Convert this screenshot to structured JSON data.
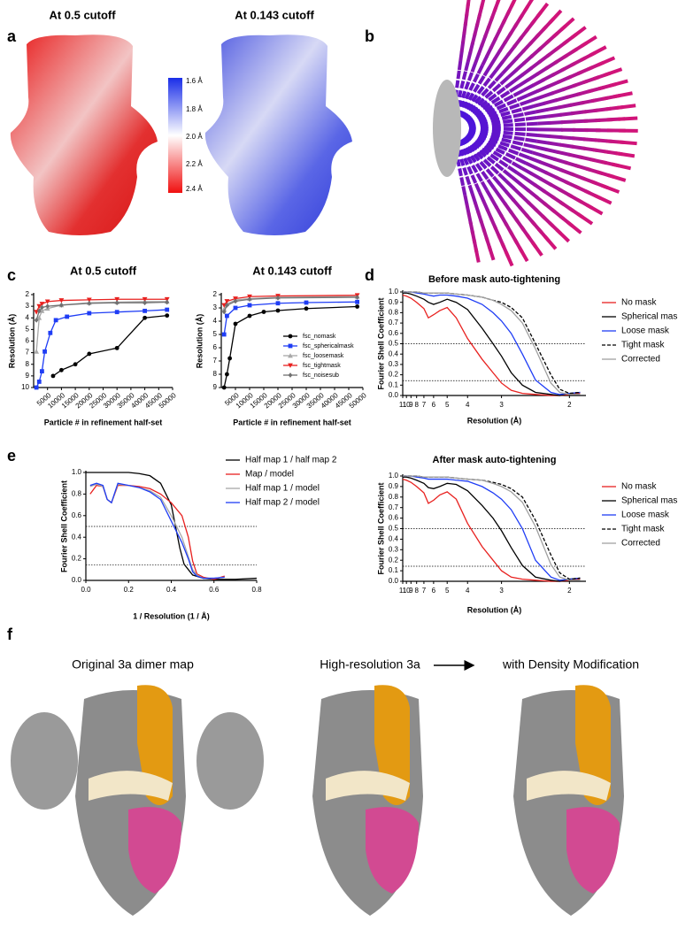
{
  "panel_labels": [
    "a",
    "b",
    "c",
    "d",
    "e",
    "f"
  ],
  "panel_a": {
    "titles": [
      "At 0.5 cutoff",
      "At 0.143 cutoff"
    ],
    "colorbar_labels": [
      "1.6 Å",
      "1.8 Å",
      "2.0 Å",
      "2.2 Å",
      "2.4 Å"
    ]
  },
  "panel_f": {
    "titles": [
      "Original 3a dimer map",
      "High-resolution 3a",
      "with Density Modification"
    ]
  },
  "chart_data": [
    {
      "type": "line",
      "title": "At 0.5 cutoff",
      "xlabel": "Particle # in refinement half-set",
      "ylabel": "Resolution (Å)",
      "xlim": [
        0,
        50000
      ],
      "xticks": [
        5000,
        10000,
        15000,
        20000,
        25000,
        30000,
        35000,
        40000,
        45000,
        50000
      ],
      "ylim": [
        10,
        2
      ],
      "yticks": [
        2,
        3,
        4,
        5,
        6,
        7,
        8,
        9,
        10
      ],
      "series": [
        {
          "color": "#000000",
          "marker": "circle",
          "x": [
            7000,
            10000,
            15000,
            20000,
            30000,
            40000,
            48000
          ],
          "values": [
            9,
            8.5,
            8,
            7.1,
            6.6,
            4,
            3.8
          ]
        },
        {
          "color": "#1f3df5",
          "marker": "square",
          "x": [
            1000,
            2000,
            3000,
            4000,
            6000,
            8000,
            12000,
            20000,
            30000,
            40000,
            48000
          ],
          "values": [
            10,
            9.5,
            8.6,
            6.9,
            5.3,
            4.2,
            3.9,
            3.6,
            3.5,
            3.4,
            3.3
          ]
        },
        {
          "color": "#a8a8a8",
          "marker": "triangle",
          "x": [
            1000,
            2000,
            3000,
            5000,
            10000,
            20000,
            30000,
            40000,
            48000
          ],
          "values": [
            6.9,
            4,
            3.4,
            3.2,
            2.9,
            2.7,
            2.65,
            2.6,
            2.6
          ]
        },
        {
          "color": "#e8211f",
          "marker": "down-triangle",
          "x": [
            1000,
            2000,
            3000,
            5000,
            10000,
            20000,
            30000,
            40000,
            48000
          ],
          "values": [
            3.5,
            3,
            2.8,
            2.6,
            2.5,
            2.45,
            2.4,
            2.4,
            2.4
          ]
        },
        {
          "color": "#707070",
          "marker": "diamond",
          "x": [
            1000,
            2000,
            3000,
            5000,
            10000,
            20000,
            30000,
            40000,
            48000
          ],
          "values": [
            4.2,
            3.4,
            3.1,
            3,
            2.9,
            2.75,
            2.7,
            2.7,
            2.65
          ]
        }
      ]
    },
    {
      "type": "line",
      "title": "At 0.143 cutoff",
      "xlabel": "Particle # in refinement half-set",
      "ylabel": "Resolution (Å)",
      "xlim": [
        0,
        50000
      ],
      "xticks": [
        5000,
        10000,
        15000,
        20000,
        25000,
        30000,
        35000,
        40000,
        45000,
        50000
      ],
      "ylim": [
        9,
        2
      ],
      "yticks": [
        2,
        3,
        4,
        5,
        6,
        7,
        8,
        9
      ],
      "legend": "lower right",
      "series": [
        {
          "name": "fsc_nomask",
          "color": "#000000",
          "marker": "circle",
          "x": [
            1000,
            2000,
            3000,
            5000,
            10000,
            15000,
            20000,
            30000,
            48000
          ],
          "values": [
            9,
            8,
            6.8,
            4.2,
            3.6,
            3.3,
            3.2,
            3.05,
            2.9
          ]
        },
        {
          "name": "fsc_sphericalmask",
          "color": "#1f3df5",
          "marker": "square",
          "x": [
            1000,
            2000,
            5000,
            10000,
            20000,
            30000,
            48000
          ],
          "values": [
            5,
            3.6,
            3,
            2.8,
            2.65,
            2.6,
            2.55
          ]
        },
        {
          "name": "fsc_loosemask",
          "color": "#a8a8a8",
          "marker": "triangle",
          "x": [
            1000,
            2000,
            5000,
            10000,
            20000,
            48000
          ],
          "values": [
            3.1,
            2.7,
            2.4,
            2.3,
            2.2,
            2.15
          ]
        },
        {
          "name": "fsc_tightmask",
          "color": "#e8211f",
          "marker": "down-triangle",
          "x": [
            1000,
            2000,
            5000,
            10000,
            20000,
            48000
          ],
          "values": [
            2.8,
            2.5,
            2.3,
            2.15,
            2.1,
            2.05
          ]
        },
        {
          "name": "fsc_noisesub",
          "color": "#707070",
          "marker": "diamond",
          "x": [
            1000,
            2000,
            5000,
            10000,
            20000,
            48000
          ],
          "values": [
            3.3,
            2.8,
            2.5,
            2.35,
            2.25,
            2.2
          ]
        }
      ]
    },
    {
      "type": "line",
      "title": "Before mask auto-tightening",
      "xlabel": "Resolution (Å)",
      "ylabel": "Fourier Shell Coefficient",
      "xscale": "reciprocal",
      "xlim": [
        11,
        1.85
      ],
      "xticks": [
        11,
        10,
        9,
        8,
        7,
        6,
        5,
        4,
        3,
        2
      ],
      "ylim": [
        0,
        1
      ],
      "yticks": [
        {
          "value": 0,
          "label": "0.0"
        },
        0.1,
        0.2,
        0.3,
        0.4,
        0.5,
        0.6,
        0.7,
        0.8,
        0.9,
        {
          "value": 1,
          "label": "1.0"
        }
      ],
      "reference_lines": [
        0.5,
        0.143
      ],
      "legend": "right",
      "x": [
        11,
        10,
        9,
        8,
        7,
        6.5,
        6,
        5.5,
        5,
        4.5,
        4,
        3.5,
        3.2,
        3,
        2.8,
        2.6,
        2.4,
        2.2,
        2.1,
        2,
        1.9
      ],
      "series": [
        {
          "name": "No mask",
          "color": "#e8211f",
          "values": [
            0.97,
            0.96,
            0.94,
            0.9,
            0.84,
            0.75,
            0.78,
            0.82,
            0.85,
            0.75,
            0.55,
            0.35,
            0.22,
            0.12,
            0.05,
            0.02,
            0.01,
            0,
            0,
            0.01,
            0.02
          ]
        },
        {
          "name": "Spherical mask",
          "color": "#000000",
          "values": [
            0.99,
            0.99,
            0.98,
            0.96,
            0.93,
            0.9,
            0.88,
            0.9,
            0.93,
            0.9,
            0.83,
            0.65,
            0.5,
            0.38,
            0.22,
            0.1,
            0.03,
            0.01,
            0,
            0.02,
            0.03
          ]
        },
        {
          "name": "Loose mask",
          "color": "#1f3df5",
          "values": [
            1,
            1,
            1,
            0.99,
            0.98,
            0.97,
            0.96,
            0.97,
            0.97,
            0.96,
            0.94,
            0.88,
            0.8,
            0.72,
            0.6,
            0.4,
            0.15,
            0.03,
            0.01,
            0.02,
            0.03
          ]
        },
        {
          "name": "Tight mask",
          "color": "#000000",
          "dash": true,
          "values": [
            1,
            1,
            1,
            1,
            0.99,
            0.99,
            0.99,
            0.99,
            0.99,
            0.98,
            0.97,
            0.95,
            0.92,
            0.9,
            0.85,
            0.75,
            0.5,
            0.2,
            0.06,
            0.02,
            0.03
          ]
        },
        {
          "name": "Corrected",
          "color": "#a0a0a0",
          "values": [
            1,
            1,
            1,
            1,
            0.99,
            0.99,
            0.99,
            0.99,
            0.99,
            0.98,
            0.97,
            0.95,
            0.92,
            0.88,
            0.82,
            0.7,
            0.45,
            0.12,
            0.03,
            0.01,
            0.01
          ]
        }
      ]
    },
    {
      "type": "line",
      "xlabel": "1 / Resolution (1 / Å)",
      "ylabel": "Fourier Shell Coefficient",
      "xlim": [
        0,
        0.8
      ],
      "xticks": [
        {
          "value": 0,
          "label": "0.0"
        },
        0.2,
        0.4,
        0.6,
        0.8
      ],
      "ylim": [
        0,
        1
      ],
      "yticks": [
        {
          "value": 0,
          "label": "0.0"
        },
        0.2,
        0.4,
        0.6,
        0.8,
        {
          "value": 1,
          "label": "1.0"
        }
      ],
      "reference_lines": [
        0.5,
        0.143
      ],
      "legend": "upper right",
      "series": [
        {
          "name": "Half map 1 / half map 2",
          "color": "#000000",
          "x": [
            0,
            0.05,
            0.1,
            0.15,
            0.2,
            0.25,
            0.3,
            0.35,
            0.4,
            0.42,
            0.44,
            0.46,
            0.5,
            0.55,
            0.6,
            0.7,
            0.8
          ],
          "values": [
            1,
            1,
            1,
            1,
            1,
            0.99,
            0.97,
            0.9,
            0.7,
            0.5,
            0.3,
            0.15,
            0.05,
            0.02,
            0.01,
            0.01,
            0.02
          ]
        },
        {
          "name": "Map / model",
          "color": "#e8211f",
          "x": [
            0.02,
            0.05,
            0.08,
            0.1,
            0.12,
            0.15,
            0.2,
            0.25,
            0.3,
            0.35,
            0.4,
            0.45,
            0.48,
            0.5,
            0.52,
            0.55,
            0.6,
            0.65
          ],
          "values": [
            0.8,
            0.88,
            0.87,
            0.75,
            0.72,
            0.88,
            0.88,
            0.87,
            0.85,
            0.8,
            0.72,
            0.6,
            0.4,
            0.18,
            0.06,
            0.03,
            0.01,
            0.04
          ]
        },
        {
          "name": "Half map 1 / model",
          "color": "#a8a8a8",
          "x": [
            0.02,
            0.05,
            0.08,
            0.1,
            0.12,
            0.15,
            0.2,
            0.25,
            0.3,
            0.35,
            0.4,
            0.45,
            0.48,
            0.5,
            0.52,
            0.55,
            0.6,
            0.65
          ],
          "values": [
            0.87,
            0.89,
            0.87,
            0.75,
            0.72,
            0.89,
            0.88,
            0.86,
            0.83,
            0.77,
            0.6,
            0.4,
            0.22,
            0.1,
            0.05,
            0.02,
            0.02,
            0.03
          ]
        },
        {
          "name": "Half map 2 / model",
          "color": "#1f3df5",
          "x": [
            0.02,
            0.05,
            0.08,
            0.1,
            0.12,
            0.15,
            0.2,
            0.25,
            0.3,
            0.35,
            0.4,
            0.45,
            0.48,
            0.5,
            0.52,
            0.55,
            0.6,
            0.65
          ],
          "values": [
            0.88,
            0.9,
            0.88,
            0.75,
            0.72,
            0.9,
            0.88,
            0.86,
            0.82,
            0.75,
            0.55,
            0.35,
            0.2,
            0.08,
            0.04,
            0.02,
            0.02,
            0.03
          ]
        }
      ]
    },
    {
      "type": "line",
      "title": "After mask auto-tightening",
      "xlabel": "Resolution (Å)",
      "ylabel": "Fourier Shell Coefficient",
      "xscale": "reciprocal",
      "xlim": [
        11,
        1.85
      ],
      "xticks": [
        11,
        10,
        9,
        8,
        7,
        6,
        5,
        4,
        3,
        2
      ],
      "ylim": [
        0,
        1
      ],
      "yticks": [
        {
          "value": 0,
          "label": "0.0"
        },
        0.1,
        0.2,
        0.3,
        0.4,
        0.5,
        0.6,
        0.7,
        0.8,
        0.9,
        {
          "value": 1,
          "label": "1.0"
        }
      ],
      "reference_lines": [
        0.5,
        0.143
      ],
      "legend": "right",
      "x": [
        11,
        10,
        9,
        8,
        7,
        6.5,
        6,
        5.5,
        5,
        4.5,
        4,
        3.5,
        3.2,
        3,
        2.8,
        2.6,
        2.4,
        2.2,
        2.1,
        2,
        1.9
      ],
      "series": [
        {
          "name": "No mask",
          "color": "#e8211f",
          "values": [
            0.97,
            0.96,
            0.94,
            0.9,
            0.84,
            0.74,
            0.77,
            0.82,
            0.85,
            0.78,
            0.55,
            0.33,
            0.2,
            0.1,
            0.04,
            0.02,
            0.01,
            0,
            0,
            0.01,
            0.02
          ]
        },
        {
          "name": "Spherical mask",
          "color": "#000000",
          "values": [
            0.99,
            0.99,
            0.98,
            0.96,
            0.93,
            0.89,
            0.88,
            0.9,
            0.93,
            0.92,
            0.86,
            0.72,
            0.6,
            0.48,
            0.32,
            0.15,
            0.04,
            0.01,
            0,
            0.02,
            0.03
          ]
        },
        {
          "name": "Loose mask",
          "color": "#1f3df5",
          "values": [
            1,
            1,
            1,
            0.99,
            0.98,
            0.97,
            0.97,
            0.97,
            0.97,
            0.96,
            0.95,
            0.9,
            0.84,
            0.78,
            0.68,
            0.5,
            0.2,
            0.04,
            0.01,
            0.02,
            0.03
          ]
        },
        {
          "name": "Tight mask",
          "color": "#000000",
          "dash": true,
          "values": [
            1,
            1,
            1,
            1,
            0.99,
            0.99,
            0.99,
            0.99,
            0.99,
            0.98,
            0.97,
            0.96,
            0.94,
            0.92,
            0.88,
            0.8,
            0.58,
            0.25,
            0.08,
            0.02,
            0.03
          ]
        },
        {
          "name": "Corrected",
          "color": "#a0a0a0",
          "values": [
            1,
            1,
            1,
            1,
            0.99,
            0.99,
            0.99,
            0.99,
            0.99,
            0.98,
            0.97,
            0.96,
            0.93,
            0.9,
            0.85,
            0.75,
            0.52,
            0.16,
            0.04,
            0.01,
            0.01
          ]
        }
      ]
    }
  ]
}
